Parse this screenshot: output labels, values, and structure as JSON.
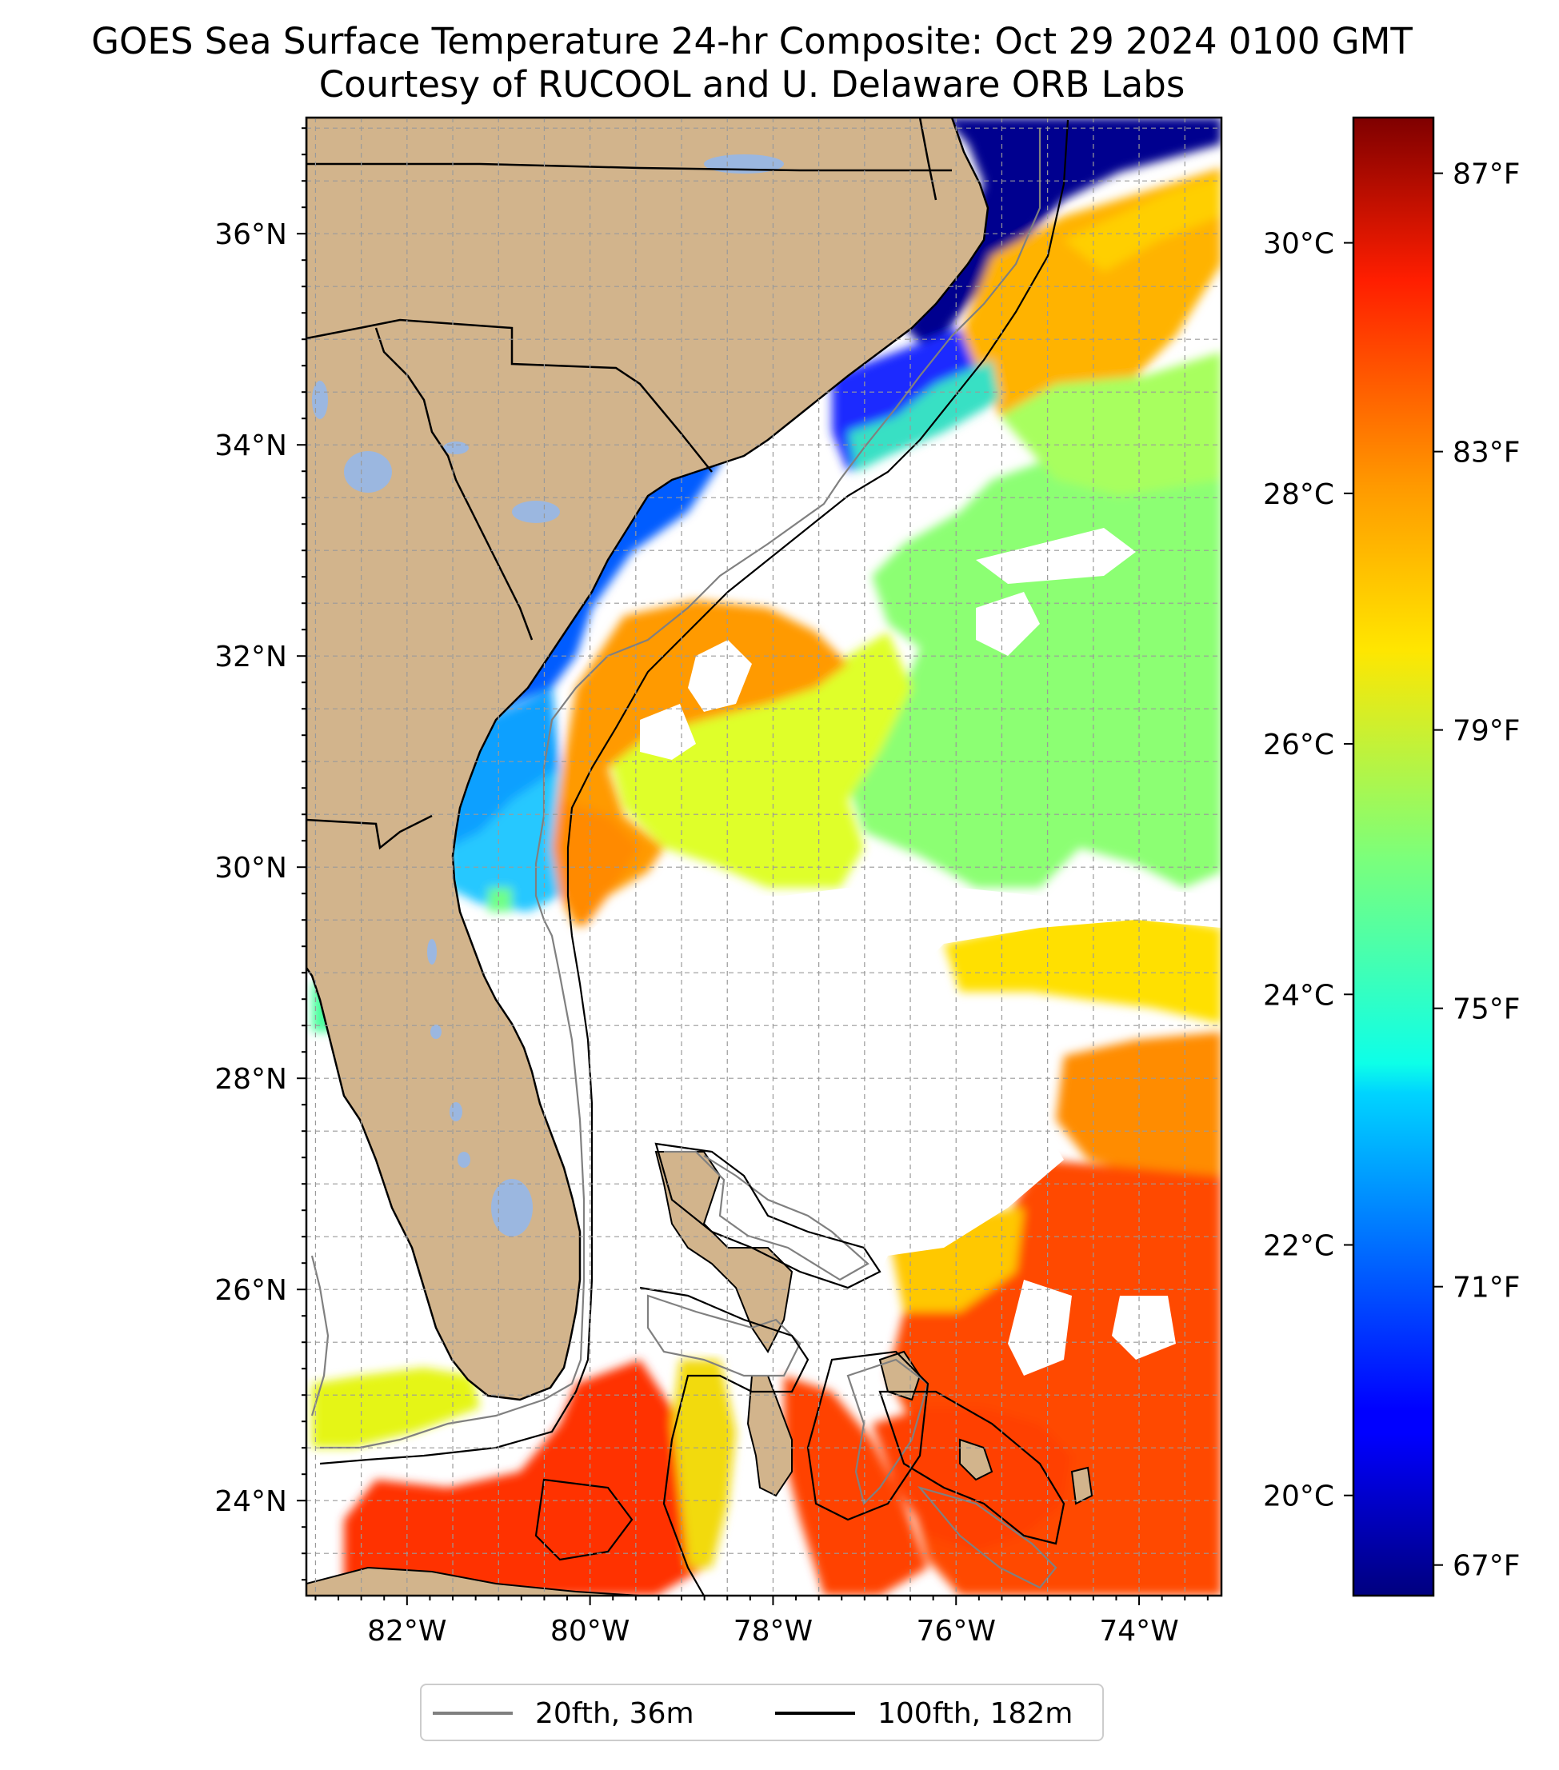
{
  "title": {
    "line1": "GOES Sea Surface Temperature 24-hr Composite: Oct 29 2024 0100 GMT",
    "line2": "Courtesy of RUCOOL and U. Delaware ORB Labs"
  },
  "map": {
    "extent": {
      "lon_min": -83.1,
      "lon_max": -73.1,
      "lat_min": 23.1,
      "lat_max": 37.1
    },
    "lat_ticks": [
      {
        "value": 24,
        "label": "24°N"
      },
      {
        "value": 26,
        "label": "26°N"
      },
      {
        "value": 28,
        "label": "28°N"
      },
      {
        "value": 30,
        "label": "30°N"
      },
      {
        "value": 32,
        "label": "32°N"
      },
      {
        "value": 34,
        "label": "34°N"
      },
      {
        "value": 36,
        "label": "36°N"
      }
    ],
    "lon_ticks": [
      {
        "value": -82,
        "label": "82°W"
      },
      {
        "value": -80,
        "label": "80°W"
      },
      {
        "value": -78,
        "label": "78°W"
      },
      {
        "value": -76,
        "label": "76°W"
      },
      {
        "value": -74,
        "label": "74°W"
      }
    ],
    "gridlines": "dashed, every 0.5°",
    "land_color": "#d2b48c",
    "lake_color": "#9bb7e0"
  },
  "colorbar": {
    "colormap": "jet",
    "range_c": [
      19.2,
      31.0
    ],
    "celsius_ticks": [
      {
        "value": 20,
        "label": "20°C"
      },
      {
        "value": 22,
        "label": "22°C"
      },
      {
        "value": 24,
        "label": "24°C"
      },
      {
        "value": 26,
        "label": "26°C"
      },
      {
        "value": 28,
        "label": "28°C"
      },
      {
        "value": 30,
        "label": "30°C"
      }
    ],
    "fahrenheit_ticks": [
      {
        "value": 67,
        "label": "67°F"
      },
      {
        "value": 71,
        "label": "71°F"
      },
      {
        "value": 75,
        "label": "75°F"
      },
      {
        "value": 79,
        "label": "79°F"
      },
      {
        "value": 83,
        "label": "83°F"
      },
      {
        "value": 87,
        "label": "87°F"
      }
    ]
  },
  "legend": {
    "items": [
      {
        "label": "20fth, 36m",
        "color": "#808080"
      },
      {
        "label": "100fth, 182m",
        "color": "#000000"
      }
    ]
  }
}
